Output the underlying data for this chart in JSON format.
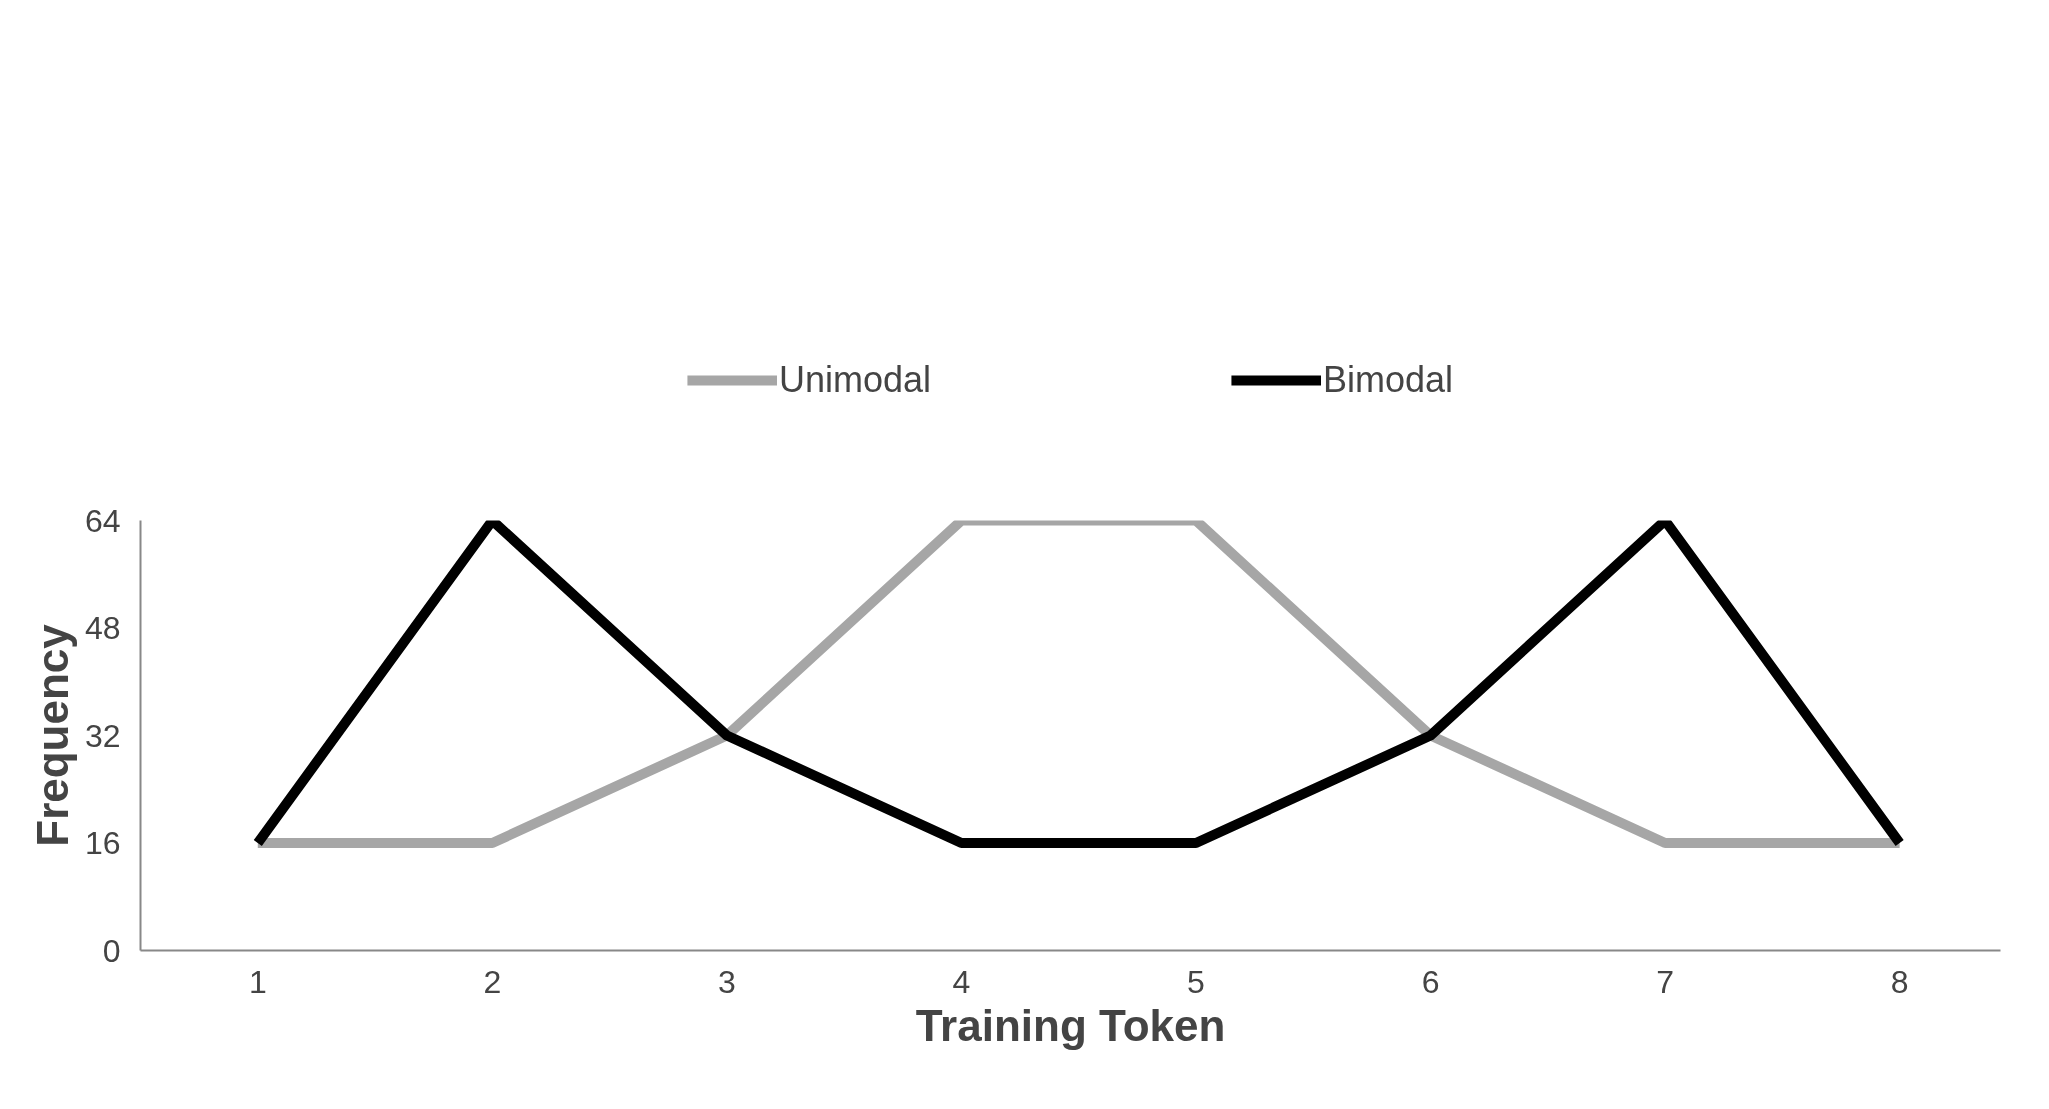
{
  "chart_data": {
    "type": "line",
    "xlabel": "Training Token",
    "ylabel": "Frequency",
    "categories": [
      "1",
      "2",
      "3",
      "4",
      "5",
      "6",
      "7",
      "8"
    ],
    "series": [
      {
        "name": "Unimodal",
        "color": "#a6a6a6",
        "values": [
          16,
          16,
          32,
          64,
          64,
          32,
          16,
          16
        ]
      },
      {
        "name": "Bimodal",
        "color": "#000000",
        "values": [
          16,
          64,
          32,
          16,
          16,
          32,
          64,
          16
        ]
      }
    ],
    "ylim": [
      0,
      64
    ],
    "yticks": [
      0,
      16,
      32,
      48,
      64
    ],
    "grid": false,
    "legend": "top",
    "marker": "none",
    "line_style": "solid"
  }
}
